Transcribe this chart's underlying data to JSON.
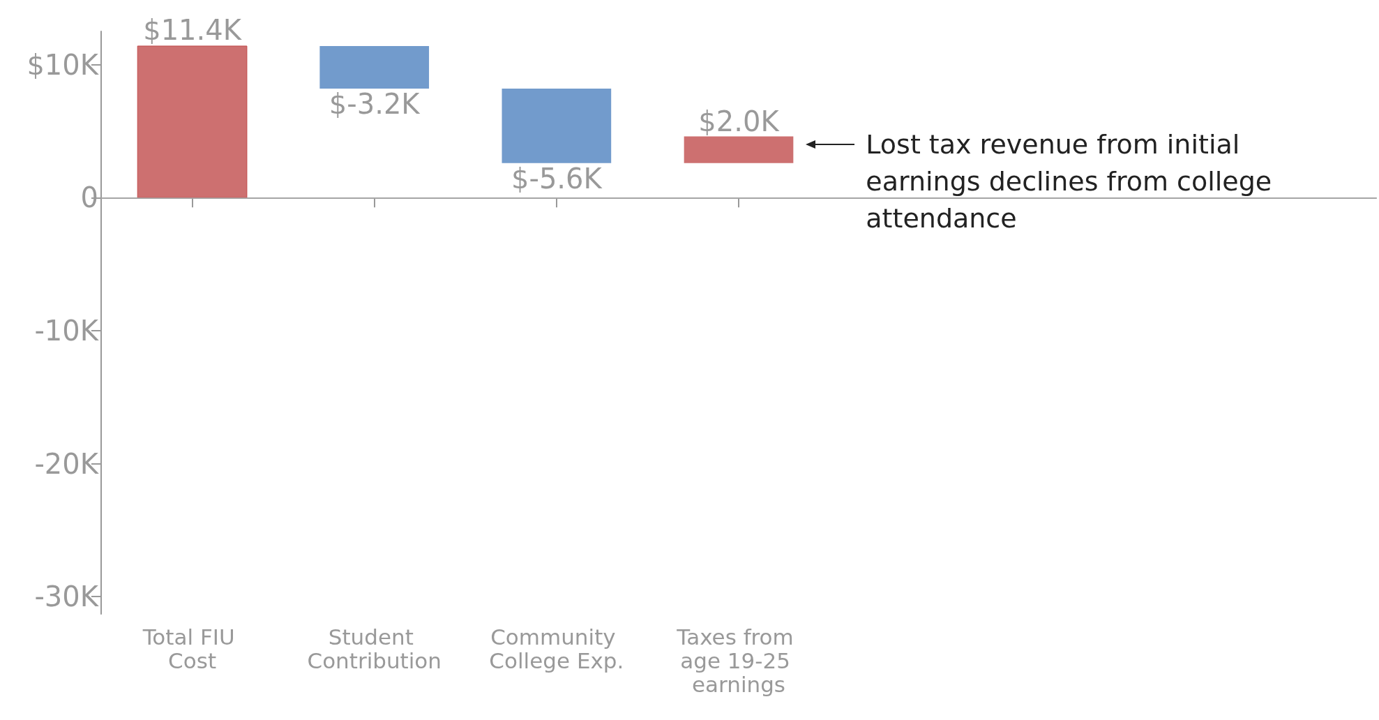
{
  "chart_data": {
    "type": "bar",
    "categories": [
      "Total FIU Cost",
      "Student Contribution",
      "Community College Exp.",
      "Taxes from age 19-25 earnings",
      null,
      null,
      null
    ],
    "values": [
      11.4,
      -3.2,
      -5.6,
      2.0,
      null,
      null,
      null
    ],
    "base": [
      0,
      11.4,
      8.2,
      2.6,
      null,
      null,
      null
    ],
    "colors": [
      "#cd7070",
      "#729bcc",
      "#729bcc",
      "#cd7070",
      null,
      null,
      null
    ],
    "value_labels": [
      "$11.4K",
      "$-3.2K",
      "$-5.6K",
      "$2.0K",
      null,
      null,
      null
    ],
    "ylim": [
      -31.3,
      12.5
    ],
    "yticks": [
      {
        "value": -30,
        "label": "-30K"
      },
      {
        "value": -20,
        "label": "-20K"
      },
      {
        "value": -10,
        "label": "-10K"
      },
      0,
      {
        "value": 10,
        "label": "$10K"
      }
    ],
    "ref_lines": [
      {
        "axis": "y",
        "value": 0,
        "color": "#aaaaaa"
      }
    ],
    "annotations": [
      "Lost tax revenue from initial earnings declines from college attendance"
    ],
    "grid": false
  }
}
